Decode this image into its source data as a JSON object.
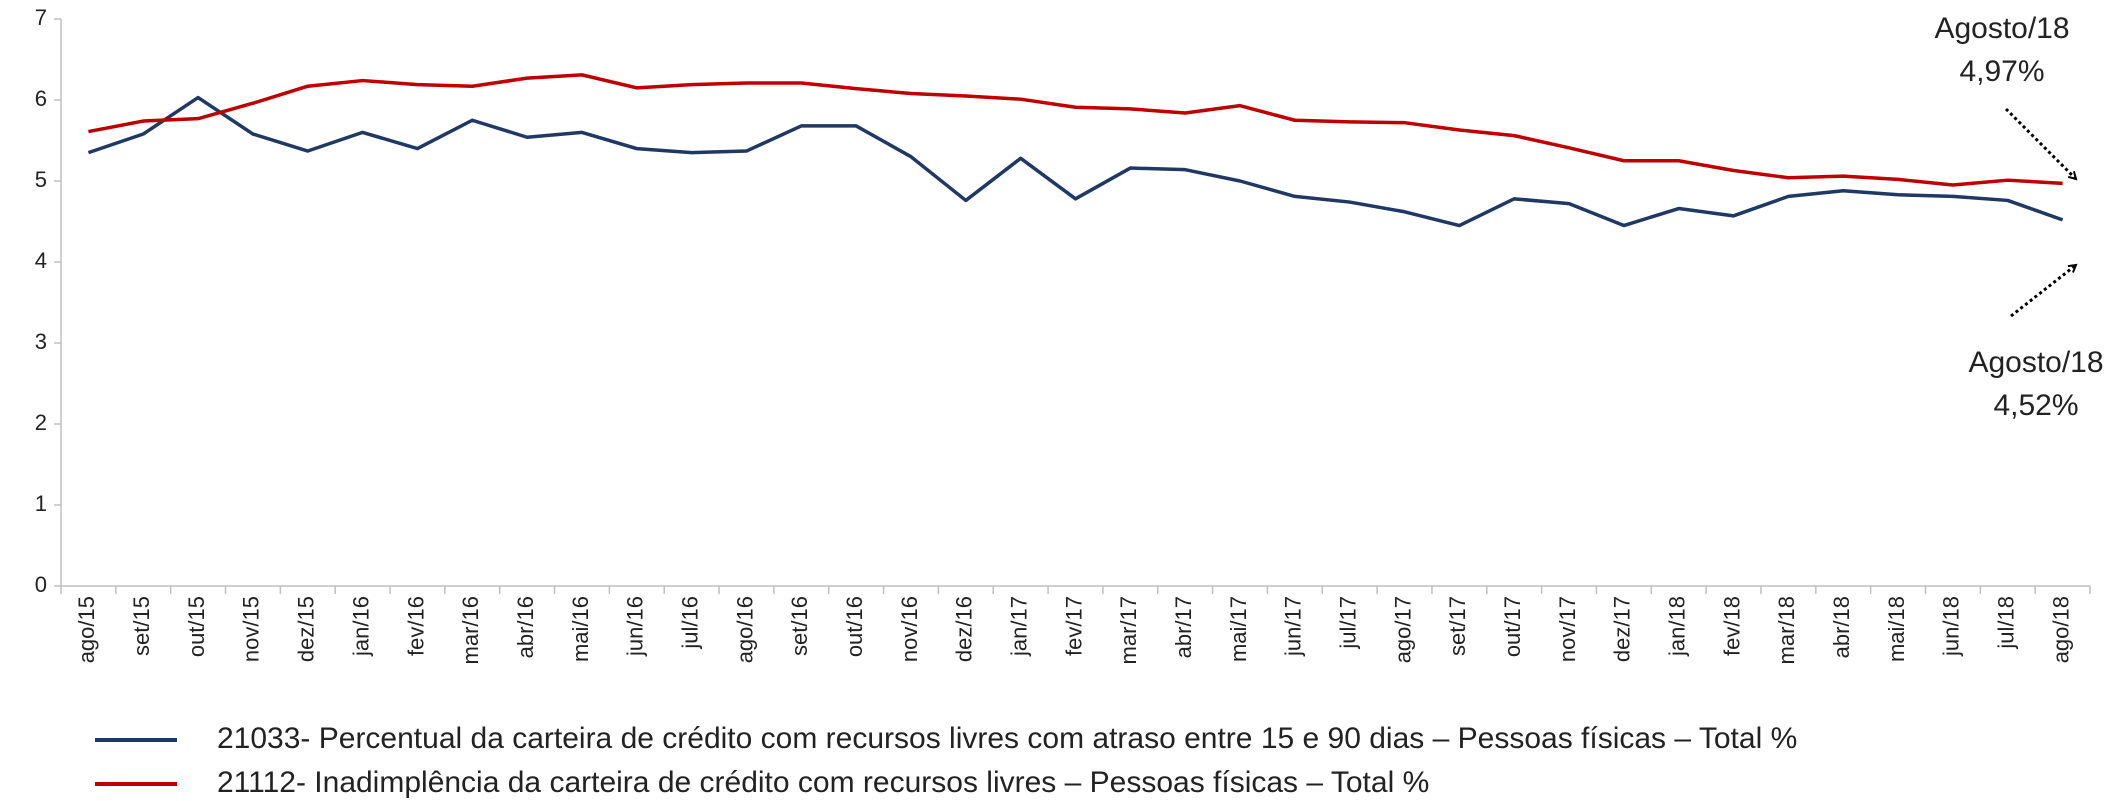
{
  "chart_data": {
    "type": "line",
    "categories": [
      "ago/15",
      "set/15",
      "out/15",
      "nov/15",
      "dez/15",
      "jan/16",
      "fev/16",
      "mar/16",
      "abr/16",
      "mai/16",
      "jun/16",
      "jul/16",
      "ago/16",
      "set/16",
      "out/16",
      "nov/16",
      "dez/16",
      "jan/17",
      "fev/17",
      "mar/17",
      "abr/17",
      "mai/17",
      "jun/17",
      "jul/17",
      "ago/17",
      "set/17",
      "out/17",
      "nov/17",
      "dez/17",
      "jan/18",
      "fev/18",
      "mar/18",
      "abr/18",
      "mai/18",
      "jun/18",
      "jul/18",
      "ago/18"
    ],
    "series": [
      {
        "name": "21033- Percentual da carteira de crédito com recursos livres com atraso entre 15 e 90 dias – Pessoas físicas – Total %",
        "color": "#1f3864",
        "values": [
          5.35,
          5.58,
          6.03,
          5.58,
          5.37,
          5.6,
          5.4,
          5.75,
          5.54,
          5.6,
          5.4,
          5.35,
          5.37,
          5.68,
          5.68,
          5.3,
          4.76,
          5.28,
          4.78,
          5.16,
          5.14,
          5.0,
          4.81,
          4.74,
          4.62,
          4.45,
          4.78,
          4.72,
          4.45,
          4.66,
          4.57,
          4.81,
          4.88,
          4.83,
          4.81,
          4.76,
          4.52
        ]
      },
      {
        "name": "21112- Inadimplência da carteira de crédito com recursos livres – Pessoas físicas – Total %",
        "color": "#c00000",
        "values": [
          5.61,
          5.74,
          5.77,
          5.96,
          6.17,
          6.24,
          6.19,
          6.17,
          6.27,
          6.31,
          6.15,
          6.19,
          6.21,
          6.21,
          6.14,
          6.08,
          6.05,
          6.01,
          5.91,
          5.89,
          5.84,
          5.93,
          5.75,
          5.73,
          5.72,
          5.63,
          5.56,
          5.41,
          5.25,
          5.25,
          5.13,
          5.04,
          5.06,
          5.02,
          4.95,
          5.01,
          4.97
        ]
      }
    ],
    "ylim": [
      0,
      7
    ],
    "yticks": [
      0,
      1,
      2,
      3,
      4,
      5,
      6,
      7
    ],
    "grid": false,
    "annotations": [
      {
        "lines": [
          "Agosto/18",
          "4,97%"
        ]
      },
      {
        "lines": [
          "Agosto/18",
          "4,52%"
        ]
      }
    ]
  }
}
